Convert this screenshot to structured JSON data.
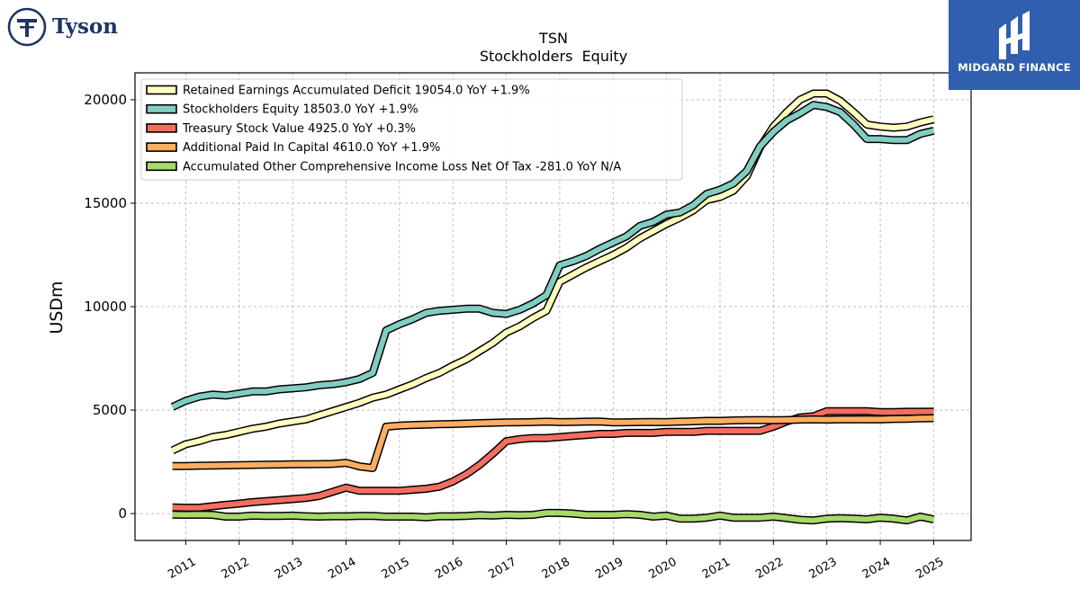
{
  "branding": {
    "company_name": "Tyson",
    "publisher_name": "MIDGARD FINANCE"
  },
  "chart_data": {
    "type": "line",
    "title": "TSN",
    "subtitle": "Stockholders  Equity",
    "ylabel": "USDm",
    "xlabel": "",
    "ylim": [
      -1300,
      21300
    ],
    "xlim": [
      2010.05,
      2025.7
    ],
    "yticks": [
      0,
      5000,
      10000,
      15000,
      20000
    ],
    "xticks": [
      2011,
      2012,
      2013,
      2014,
      2015,
      2016,
      2017,
      2018,
      2019,
      2020,
      2021,
      2022,
      2023,
      2024,
      2025
    ],
    "grid": true,
    "legend_position": "top-left",
    "x": [
      2010.75,
      2011.0,
      2011.25,
      2011.5,
      2011.75,
      2012.0,
      2012.25,
      2012.5,
      2012.75,
      2013.0,
      2013.25,
      2013.5,
      2013.75,
      2014.0,
      2014.25,
      2014.5,
      2014.75,
      2015.0,
      2015.25,
      2015.5,
      2015.75,
      2016.0,
      2016.25,
      2016.5,
      2016.75,
      2017.0,
      2017.25,
      2017.5,
      2017.75,
      2018.0,
      2018.25,
      2018.5,
      2018.75,
      2019.0,
      2019.25,
      2019.5,
      2019.75,
      2020.0,
      2020.25,
      2020.5,
      2020.75,
      2021.0,
      2021.25,
      2021.5,
      2021.75,
      2022.0,
      2022.25,
      2022.5,
      2022.75,
      2023.0,
      2023.25,
      2023.5,
      2023.75,
      2024.0,
      2024.25,
      2024.5,
      2024.75,
      2025.0
    ],
    "series": [
      {
        "name": "Retained Earnings Accumulated Deficit",
        "legend_label": "Retained Earnings Accumulated Deficit  19054.0 YoY +1.9%",
        "color": "#ffffbf",
        "values": [
          3050,
          3350,
          3500,
          3700,
          3800,
          3950,
          4100,
          4200,
          4350,
          4450,
          4550,
          4750,
          4950,
          5150,
          5350,
          5600,
          5750,
          6000,
          6250,
          6550,
          6800,
          7150,
          7450,
          7850,
          8250,
          8750,
          9050,
          9450,
          9800,
          11200,
          11550,
          11900,
          12200,
          12500,
          12850,
          13300,
          13650,
          14000,
          14300,
          14650,
          15150,
          15300,
          15600,
          16300,
          17700,
          18700,
          19400,
          20000,
          20300,
          20300,
          19950,
          19400,
          18800,
          18700,
          18650,
          18700,
          18900,
          19054
        ]
      },
      {
        "name": "Stockholders Equity",
        "legend_label": "Stockholders Equity  18503.0 YoY +1.9%",
        "color": "#80cdc1",
        "values": [
          5150,
          5450,
          5650,
          5750,
          5700,
          5800,
          5900,
          5900,
          6000,
          6050,
          6100,
          6200,
          6250,
          6350,
          6500,
          6800,
          8850,
          9150,
          9400,
          9700,
          9800,
          9850,
          9900,
          9900,
          9700,
          9650,
          9850,
          10150,
          10550,
          12000,
          12200,
          12450,
          12800,
          13100,
          13400,
          13900,
          14100,
          14450,
          14550,
          14900,
          15450,
          15650,
          15950,
          16550,
          17750,
          18450,
          19000,
          19350,
          19750,
          19650,
          19400,
          18800,
          18100,
          18100,
          18050,
          18050,
          18350,
          18503
        ]
      },
      {
        "name": "Treasury Stock Value",
        "legend_label": "Treasury Stock Value  4925.0 YoY +0.3%",
        "color": "#f46d5f",
        "values": [
          300,
          280,
          280,
          350,
          420,
          480,
          550,
          600,
          650,
          700,
          750,
          850,
          1050,
          1250,
          1100,
          1100,
          1100,
          1100,
          1150,
          1200,
          1300,
          1550,
          1900,
          2350,
          2900,
          3500,
          3600,
          3650,
          3650,
          3700,
          3750,
          3800,
          3850,
          3850,
          3900,
          3900,
          3900,
          3950,
          3950,
          3950,
          4000,
          4000,
          4000,
          4000,
          4000,
          4200,
          4450,
          4650,
          4700,
          4950,
          4950,
          4950,
          4950,
          4900,
          4900,
          4920,
          4920,
          4925
        ]
      },
      {
        "name": "Additional Paid In Capital",
        "legend_label": "Additional Paid In Capital  4610.0 YoY +1.9%",
        "color": "#fdae61",
        "values": [
          2300,
          2300,
          2310,
          2320,
          2330,
          2340,
          2350,
          2360,
          2370,
          2380,
          2380,
          2390,
          2400,
          2450,
          2280,
          2200,
          4200,
          4250,
          4280,
          4300,
          4320,
          4330,
          4350,
          4370,
          4390,
          4400,
          4410,
          4420,
          4440,
          4420,
          4430,
          4440,
          4450,
          4400,
          4410,
          4420,
          4430,
          4420,
          4440,
          4460,
          4480,
          4480,
          4500,
          4510,
          4520,
          4510,
          4520,
          4540,
          4550,
          4540,
          4550,
          4550,
          4560,
          4550,
          4570,
          4580,
          4600,
          4610
        ]
      },
      {
        "name": "Accumulated Other Comprehensive Income Loss Net Of Tax",
        "legend_label": "Accumulated Other Comprehensive Income Loss Net Of Tax  -281.0 YoY N/A",
        "color": "#a6d96a",
        "values": [
          -50,
          -60,
          -50,
          -60,
          -150,
          -150,
          -100,
          -120,
          -120,
          -100,
          -130,
          -150,
          -130,
          -130,
          -120,
          -120,
          -150,
          -150,
          -150,
          -180,
          -130,
          -130,
          -120,
          -80,
          -100,
          -60,
          -80,
          -60,
          30,
          30,
          0,
          -60,
          -60,
          -60,
          -30,
          -60,
          -150,
          -100,
          -250,
          -250,
          -200,
          -100,
          -200,
          -200,
          -200,
          -150,
          -220,
          -300,
          -330,
          -250,
          -220,
          -250,
          -280,
          -200,
          -250,
          -330,
          -150,
          -281
        ]
      }
    ]
  }
}
